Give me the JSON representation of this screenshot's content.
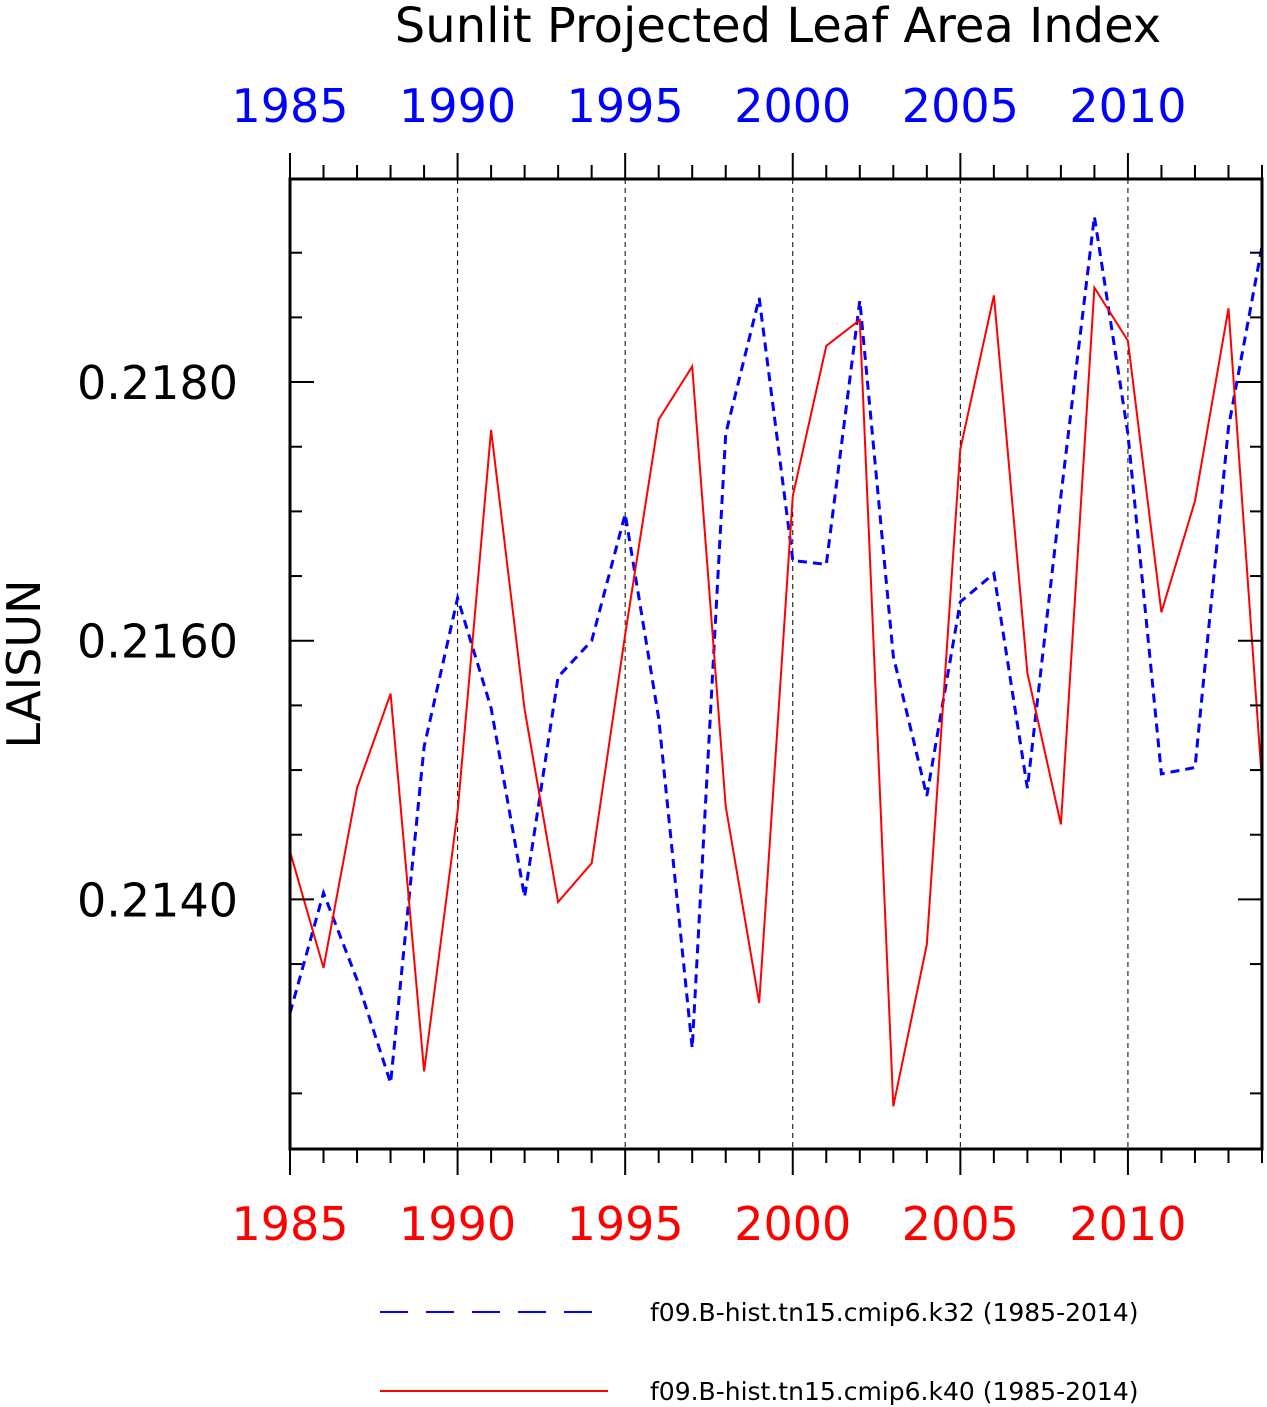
{
  "chart_data": {
    "type": "line",
    "title": "Sunlit Projected Leaf Area Index",
    "ylabel": "LAISUN",
    "xlabel": "",
    "xlim": [
      1985,
      2014
    ],
    "ylim": [
      0.21207,
      0.21957
    ],
    "grid": "vertical dashed at labeled years",
    "x": [
      1985,
      1986,
      1987,
      1988,
      1989,
      1990,
      1991,
      1992,
      1993,
      1994,
      1995,
      1996,
      1997,
      1998,
      1999,
      2000,
      2001,
      2002,
      2003,
      2004,
      2005,
      2006,
      2007,
      2008,
      2009,
      2010,
      2011,
      2012,
      2013,
      2014
    ],
    "x_ticks": [
      {
        "value": 1985,
        "label": "1985"
      },
      {
        "value": 1990,
        "label": "1990"
      },
      {
        "value": 1995,
        "label": "1995"
      },
      {
        "value": 2000,
        "label": "2000"
      },
      {
        "value": 2005,
        "label": "2005"
      },
      {
        "value": 2010,
        "label": "2010"
      }
    ],
    "y_ticks": [
      {
        "value": 0.214,
        "label": "0.2140"
      },
      {
        "value": 0.216,
        "label": "0.2160"
      },
      {
        "value": 0.218,
        "label": "0.2180"
      }
    ],
    "y_minor_ticks": [
      0.2125,
      0.2135,
      0.2145,
      0.215,
      0.2155,
      0.2165,
      0.217,
      0.2175,
      0.2185,
      0.219
    ],
    "series": [
      {
        "name": "f09.B-hist.tn15.cmip6.k32 (1985-2014)",
        "color": "#0000ff",
        "style": "dashed",
        "values": [
          0.21312,
          0.21405,
          0.21338,
          0.21258,
          0.21518,
          0.21633,
          0.21548,
          0.21402,
          0.21572,
          0.216,
          0.21698,
          0.2154,
          0.21285,
          0.2176,
          0.21865,
          0.21662,
          0.21659,
          0.21863,
          0.21588,
          0.2148,
          0.2163,
          0.21652,
          0.21486,
          0.21712,
          0.21928,
          0.2176,
          0.21497,
          0.21502,
          0.21765,
          0.21905
        ]
      },
      {
        "name": "f09.B-hist.tn15.cmip6.k40 (1985-2014)",
        "color": "#ff0000",
        "style": "solid",
        "values": [
          0.21437,
          0.21347,
          0.21486,
          0.21559,
          0.21267,
          0.21468,
          0.21763,
          0.21547,
          0.21398,
          0.21428,
          0.21605,
          0.21771,
          0.21812,
          0.21472,
          0.2132,
          0.21712,
          0.21828,
          0.21848,
          0.2124,
          0.21365,
          0.21748,
          0.21867,
          0.21575,
          0.21458,
          0.21873,
          0.21832,
          0.21622,
          0.21708,
          0.21857,
          0.21491
        ]
      }
    ]
  }
}
